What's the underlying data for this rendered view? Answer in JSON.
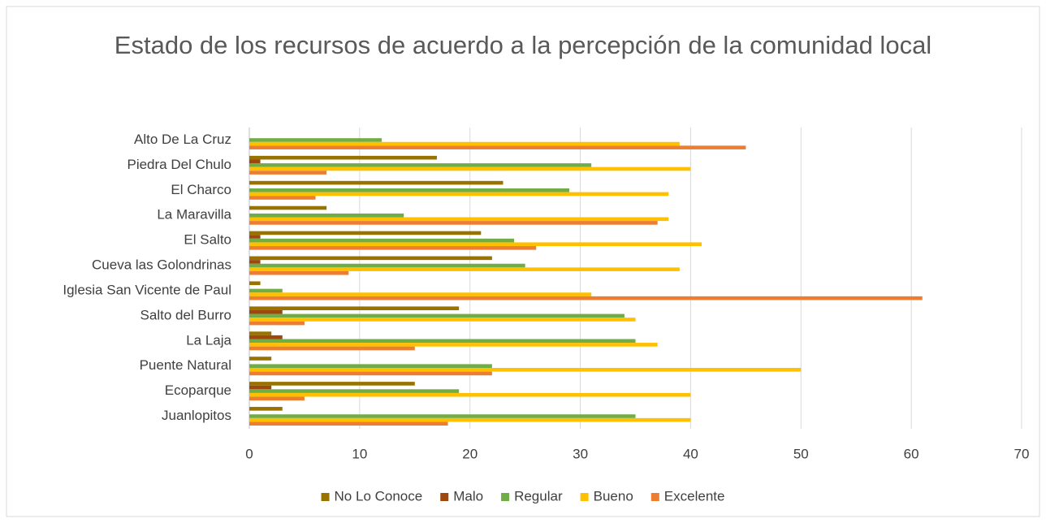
{
  "chart_data": {
    "type": "hbar",
    "title": "Estado de los recursos de acuerdo a la percepción de la comunidad local",
    "categories": [
      "Alto De La Cruz",
      "Piedra Del Chulo",
      "El Charco",
      "La Maravilla",
      "El Salto",
      "Cueva las Golondrinas",
      "Iglesia San Vicente de Paul",
      "Salto del Burro",
      "La Laja",
      "Puente Natural",
      "Ecoparque",
      "Juanlopitos"
    ],
    "series": [
      {
        "name": "No Lo Conoce",
        "color": "#997300",
        "values": [
          0,
          17,
          23,
          7,
          21,
          22,
          1,
          19,
          2,
          2,
          15,
          3
        ]
      },
      {
        "name": "Malo",
        "color": "#9e480e",
        "values": [
          0,
          1,
          0,
          0,
          1,
          1,
          0,
          3,
          3,
          0,
          2,
          0
        ]
      },
      {
        "name": "Regular",
        "color": "#70ad47",
        "values": [
          12,
          31,
          29,
          14,
          24,
          25,
          3,
          34,
          35,
          22,
          19,
          35
        ]
      },
      {
        "name": "Bueno",
        "color": "#ffc000",
        "values": [
          39,
          40,
          38,
          38,
          41,
          39,
          31,
          35,
          37,
          50,
          40,
          40
        ]
      },
      {
        "name": "Excelente",
        "color": "#ed7d31",
        "values": [
          45,
          7,
          6,
          37,
          26,
          9,
          61,
          5,
          15,
          22,
          5,
          18
        ]
      }
    ],
    "xlim": [
      0,
      70
    ],
    "xticks": [
      0,
      10,
      20,
      30,
      40,
      50,
      60,
      70
    ],
    "grid": true,
    "legend": "bottom"
  }
}
